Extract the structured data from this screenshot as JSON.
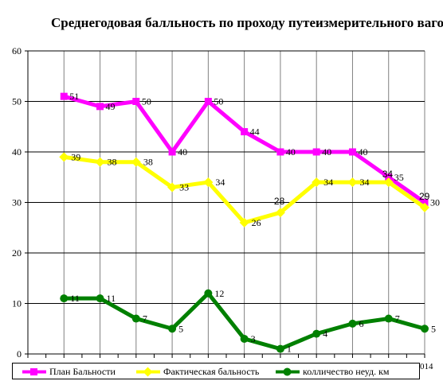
{
  "title": "Среднегодовая балльность по проходу путеизмерительного вагона",
  "corner_label": "014",
  "colors": {
    "plan": "#ff00ff",
    "fact": "#ffff00",
    "count": "#008000",
    "grid": "#000000",
    "vgrid": "#808080"
  },
  "chart_data": {
    "type": "line",
    "title": "Среднегодовая балльность по проходу путеизмерительного вагона",
    "xlabel": "",
    "ylabel": "",
    "ylim": [
      0,
      60
    ],
    "yticks": [
      0,
      10,
      20,
      30,
      40,
      50,
      60
    ],
    "grid": true,
    "legend_position": "bottom",
    "x": [
      1,
      2,
      3,
      4,
      5,
      6,
      7,
      8,
      9,
      10,
      11
    ],
    "series": [
      {
        "name": "План Бальности",
        "color": "#ff00ff",
        "marker": "square",
        "values": [
          51,
          49,
          50,
          40,
          50,
          44,
          40,
          40,
          40,
          35,
          30
        ],
        "labels": [
          "51",
          "49",
          "50",
          "40",
          "50",
          "44",
          "40",
          "40",
          "40",
          "35",
          "30"
        ]
      },
      {
        "name": "Фактическая бальность",
        "color": "#ffff00",
        "marker": "diamond",
        "values": [
          39,
          38,
          38,
          33,
          34,
          26,
          28,
          34,
          34,
          34,
          29
        ],
        "labels": [
          "39",
          "38",
          "38",
          "33",
          "34",
          "26",
          "28",
          "34",
          "34",
          "34",
          "29"
        ]
      },
      {
        "name": "колличество неуд. км",
        "color": "#008000",
        "marker": "circle",
        "values": [
          11,
          11,
          7,
          5,
          12,
          3,
          1,
          4,
          6,
          7,
          5
        ],
        "labels": [
          "11",
          "11",
          "7",
          "5",
          "12",
          "3",
          "1",
          "4",
          "6",
          "7",
          "5"
        ]
      }
    ]
  }
}
